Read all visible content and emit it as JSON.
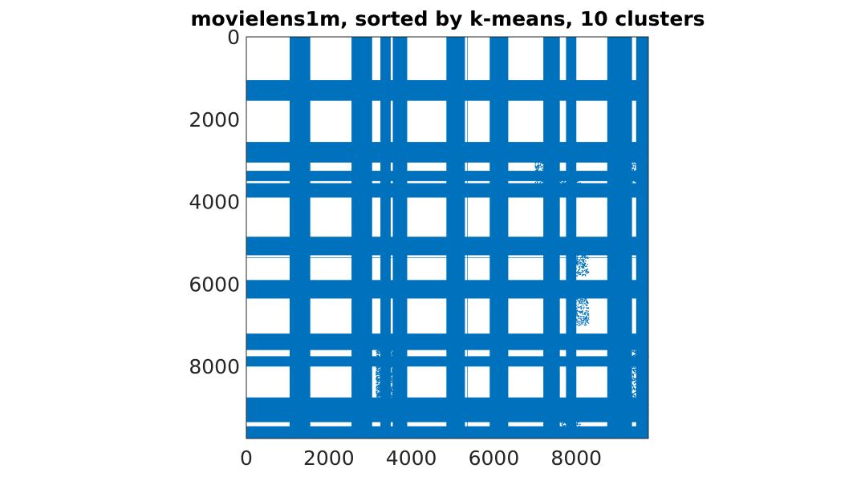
{
  "chart_data": {
    "type": "heatmap",
    "title": "movielens1m, sorted by k-means, 10 clusters",
    "xlabel": "",
    "ylabel": "",
    "xlim": [
      0,
      9746
    ],
    "ylim": [
      0,
      9746
    ],
    "y_axis_direction": "reversed",
    "x_ticks": [
      0,
      2000,
      4000,
      6000,
      8000
    ],
    "y_ticks": [
      0,
      2000,
      4000,
      6000,
      8000
    ],
    "x_tick_labels": [
      "0",
      "2000",
      "4000",
      "6000",
      "8000"
    ],
    "y_tick_labels": [
      "0",
      "2000",
      "4000",
      "6000",
      "8000"
    ],
    "grid": false,
    "marker_color": "#0072BD",
    "background_color": "#FFFFFF",
    "dense_bands": [
      [
        1050,
        1550
      ],
      [
        2550,
        3050
      ],
      [
        3250,
        3500
      ],
      [
        3550,
        3900
      ],
      [
        4850,
        5300
      ],
      [
        5900,
        6350
      ],
      [
        7200,
        7600
      ],
      [
        7750,
        8000
      ],
      [
        8750,
        9350
      ],
      [
        9450,
        9746
      ]
    ],
    "thin_lines": [
      5280,
      5360
    ],
    "sparse_blocks": [
      {
        "x": [
          3150,
          3800
        ],
        "y": [
          7600,
          8800
        ]
      },
      {
        "x": [
          3150,
          3800
        ],
        "y": [
          7600,
          8800
        ]
      },
      {
        "x": [
          7000,
          7400
        ],
        "y": [
          3000,
          3800
        ]
      },
      {
        "x": [
          7400,
          8100
        ],
        "y": [
          3400,
          3800
        ]
      },
      {
        "x": [
          7950,
          8300
        ],
        "y": [
          5200,
          5800
        ]
      },
      {
        "x": [
          7850,
          8300
        ],
        "y": [
          6100,
          7000
        ]
      },
      {
        "x": [
          9300,
          9600
        ],
        "y": [
          3000,
          3800
        ]
      },
      {
        "x": [
          9350,
          9746
        ],
        "y": [
          7600,
          9300
        ]
      },
      {
        "x": [
          7600,
          8100
        ],
        "y": [
          9300,
          9746
        ]
      },
      {
        "x": [
          1550,
          2600
        ],
        "y": [
          9600,
          9746
        ]
      }
    ]
  }
}
